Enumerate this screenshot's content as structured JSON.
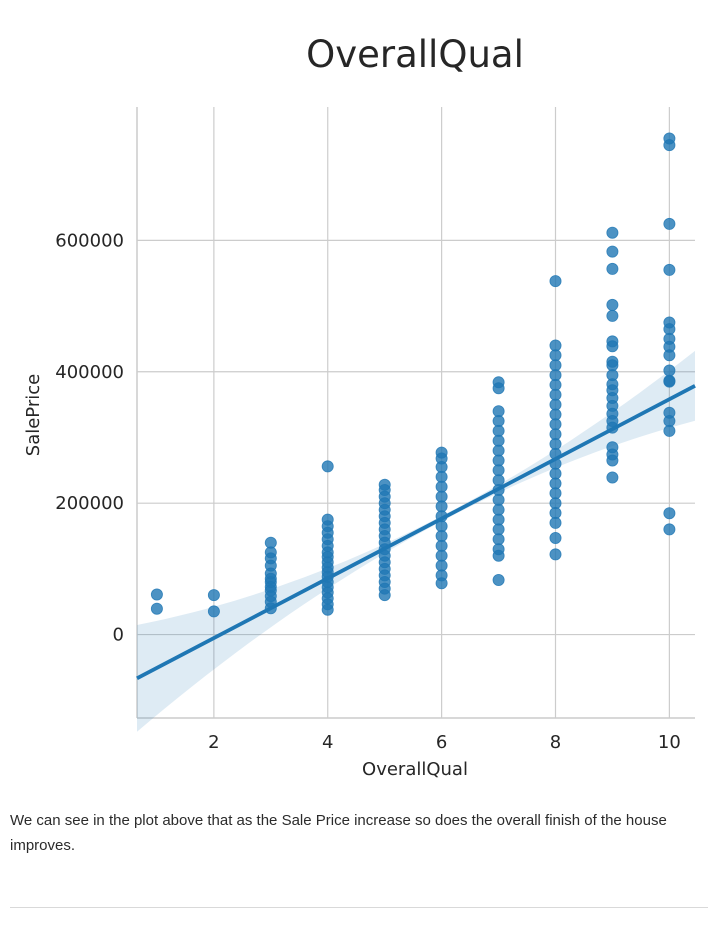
{
  "chart_data": {
    "type": "scatter",
    "title": "OverallQual",
    "xlabel": "OverallQual",
    "ylabel": "SalePrice",
    "xlim": [
      0.65,
      10.45
    ],
    "ylim": [
      -127000,
      803000
    ],
    "xticks": [
      2,
      4,
      6,
      8,
      10
    ],
    "yticks": [
      0,
      200000,
      400000,
      600000
    ],
    "grid": true,
    "series": [
      {
        "marker": "circle",
        "color": "#1f77b4",
        "points": [
          [
            1,
            61000
          ],
          [
            1,
            39300
          ],
          [
            2,
            60000
          ],
          [
            2,
            35311
          ],
          [
            3,
            139600
          ],
          [
            3,
            125000
          ],
          [
            3,
            116000
          ],
          [
            3,
            105000
          ],
          [
            3,
            93000
          ],
          [
            3,
            85000
          ],
          [
            3,
            79900
          ],
          [
            3,
            72500
          ],
          [
            3,
            67000
          ],
          [
            3,
            58500
          ],
          [
            3,
            50000
          ],
          [
            3,
            40000
          ],
          [
            4,
            256000
          ],
          [
            4,
            175000
          ],
          [
            4,
            165000
          ],
          [
            4,
            155000
          ],
          [
            4,
            145000
          ],
          [
            4,
            135000
          ],
          [
            4,
            125000
          ],
          [
            4,
            118000
          ],
          [
            4,
            110000
          ],
          [
            4,
            102000
          ],
          [
            4,
            95000
          ],
          [
            4,
            88000
          ],
          [
            4,
            80000
          ],
          [
            4,
            72000
          ],
          [
            4,
            64000
          ],
          [
            4,
            55000
          ],
          [
            4,
            46000
          ],
          [
            4,
            37900
          ],
          [
            5,
            228000
          ],
          [
            5,
            220000
          ],
          [
            5,
            210000
          ],
          [
            5,
            200000
          ],
          [
            5,
            190000
          ],
          [
            5,
            180000
          ],
          [
            5,
            170000
          ],
          [
            5,
            160000
          ],
          [
            5,
            150000
          ],
          [
            5,
            140000
          ],
          [
            5,
            130000
          ],
          [
            5,
            120000
          ],
          [
            5,
            110000
          ],
          [
            5,
            100000
          ],
          [
            5,
            90000
          ],
          [
            5,
            80000
          ],
          [
            5,
            70000
          ],
          [
            5,
            60000
          ],
          [
            6,
            277000
          ],
          [
            6,
            268000
          ],
          [
            6,
            255000
          ],
          [
            6,
            240000
          ],
          [
            6,
            225000
          ],
          [
            6,
            210000
          ],
          [
            6,
            195000
          ],
          [
            6,
            180000
          ],
          [
            6,
            165000
          ],
          [
            6,
            150000
          ],
          [
            6,
            135000
          ],
          [
            6,
            120000
          ],
          [
            6,
            105000
          ],
          [
            6,
            90000
          ],
          [
            6,
            78000
          ],
          [
            7,
            383970
          ],
          [
            7,
            375000
          ],
          [
            7,
            340000
          ],
          [
            7,
            325000
          ],
          [
            7,
            310000
          ],
          [
            7,
            295000
          ],
          [
            7,
            280000
          ],
          [
            7,
            265000
          ],
          [
            7,
            250000
          ],
          [
            7,
            235000
          ],
          [
            7,
            220000
          ],
          [
            7,
            205000
          ],
          [
            7,
            190000
          ],
          [
            7,
            175000
          ],
          [
            7,
            160000
          ],
          [
            7,
            145000
          ],
          [
            7,
            130000
          ],
          [
            7,
            120000
          ],
          [
            7,
            83000
          ],
          [
            8,
            538000
          ],
          [
            8,
            440000
          ],
          [
            8,
            425000
          ],
          [
            8,
            410000
          ],
          [
            8,
            395000
          ],
          [
            8,
            380000
          ],
          [
            8,
            365000
          ],
          [
            8,
            350000
          ],
          [
            8,
            335000
          ],
          [
            8,
            320000
          ],
          [
            8,
            305000
          ],
          [
            8,
            290000
          ],
          [
            8,
            275000
          ],
          [
            8,
            260000
          ],
          [
            8,
            245000
          ],
          [
            8,
            230000
          ],
          [
            8,
            215000
          ],
          [
            8,
            200000
          ],
          [
            8,
            185000
          ],
          [
            8,
            170000
          ],
          [
            8,
            147000
          ],
          [
            8,
            122000
          ],
          [
            9,
            611657
          ],
          [
            9,
            582933
          ],
          [
            9,
            556581
          ],
          [
            9,
            501837
          ],
          [
            9,
            485000
          ],
          [
            9,
            446261
          ],
          [
            9,
            438780
          ],
          [
            9,
            415298
          ],
          [
            9,
            410000
          ],
          [
            9,
            395000
          ],
          [
            9,
            381000
          ],
          [
            9,
            372000
          ],
          [
            9,
            360000
          ],
          [
            9,
            348000
          ],
          [
            9,
            336000
          ],
          [
            9,
            325000
          ],
          [
            9,
            315000
          ],
          [
            9,
            285000
          ],
          [
            9,
            274000
          ],
          [
            9,
            265000
          ],
          [
            9,
            239000
          ],
          [
            10,
            755000
          ],
          [
            10,
            745000
          ],
          [
            10,
            625000
          ],
          [
            10,
            555000
          ],
          [
            10,
            475000
          ],
          [
            10,
            465000
          ],
          [
            10,
            450000
          ],
          [
            10,
            438000
          ],
          [
            10,
            425000
          ],
          [
            10,
            402000
          ],
          [
            10,
            386250
          ],
          [
            10,
            385000
          ],
          [
            10,
            337500
          ],
          [
            10,
            325000
          ],
          [
            10,
            310000
          ],
          [
            10,
            184750
          ],
          [
            10,
            160000
          ]
        ]
      }
    ],
    "regression": {
      "color": "#1f77b4",
      "band_color": "#1f77b4",
      "slope": 45436,
      "intercept": -96206,
      "ci_halfwidth_at_mean": 4000,
      "ci_growth": 2600
    }
  },
  "caption": "We can see in the plot above that as the Sale Price increase so does the overall finish of the house improves."
}
